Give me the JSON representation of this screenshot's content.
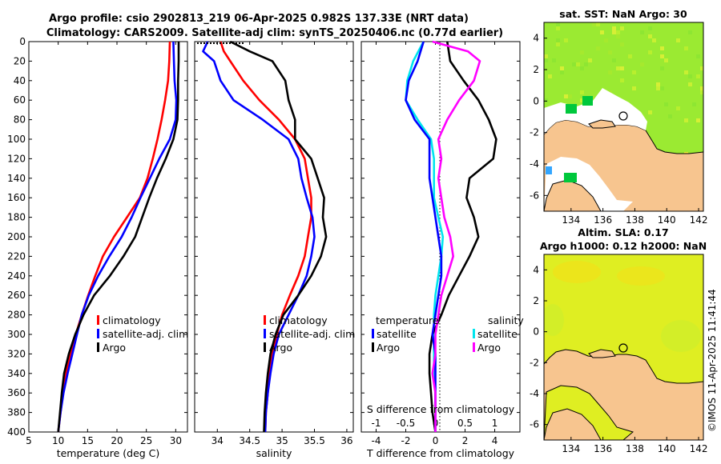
{
  "titles": {
    "main_line1": "Argo profile: csio 2902813_219 06-Apr-2025 0.982S 137.33E (NRT data)",
    "main_line2": "Climatology: CARS2009. Satellite-adj clim: synTS_20250406.nc (0.77d earlier)",
    "map_top": "sat. SST: NaN Argo: 30",
    "map_bottom_line1": "Altim. SLA: 0.17",
    "map_bottom_line2": "Argo h1000: 0.12 h2000: NaN"
  },
  "stamp": "©IMOS 11-Apr-2025 11:41:44",
  "colors": {
    "climatology": "#ff0000",
    "satellite": "#0000ff",
    "argo": "#000000",
    "temp_diff": "#00e5ee",
    "sal_diff": "#ff00ff",
    "land": "#f7c58f",
    "sst_green": "#9bea32",
    "sla_yellow": "#dfee22"
  },
  "legends": {
    "temperature": [
      "climatology",
      "satellite-adj. clim",
      "Argo"
    ],
    "salinity": [
      "climatology",
      "satellite-adj. clim",
      "Argo"
    ],
    "diff_left_header": "temperature",
    "diff_right_header": "salinity",
    "diff_left": [
      "satellite",
      "Argo"
    ],
    "diff_right": [
      "satellite",
      "Argo"
    ]
  },
  "chart_data": [
    {
      "type": "line",
      "title": "",
      "xlabel": "temperature (deg C)",
      "ylabel": "",
      "xlim": [
        5,
        32
      ],
      "ylim": [
        400,
        0
      ],
      "xticks": [
        5,
        10,
        15,
        20,
        25,
        30
      ],
      "yticks": [
        0,
        20,
        40,
        60,
        80,
        100,
        120,
        140,
        160,
        180,
        200,
        220,
        240,
        260,
        280,
        300,
        320,
        340,
        360,
        380,
        400
      ],
      "series": [
        {
          "name": "climatology",
          "depth": [
            0,
            20,
            40,
            60,
            80,
            100,
            120,
            140,
            160,
            180,
            200,
            220,
            240,
            260,
            280,
            300,
            320,
            340,
            360,
            380,
            400
          ],
          "values": [
            29.0,
            28.9,
            28.7,
            28.2,
            27.6,
            26.9,
            26.1,
            25.2,
            23.9,
            21.7,
            19.5,
            17.6,
            16.3,
            15.1,
            14.0,
            13.0,
            12.1,
            11.3,
            10.8,
            10.4,
            10.0
          ]
        },
        {
          "name": "satellite-adj. clim",
          "depth": [
            0,
            20,
            40,
            60,
            80,
            100,
            120,
            140,
            160,
            180,
            200,
            220,
            240,
            260,
            280,
            300,
            320,
            340,
            360,
            380,
            400
          ],
          "values": [
            29.6,
            29.7,
            29.8,
            30.1,
            30.0,
            29.0,
            27.2,
            25.6,
            24.0,
            22.5,
            20.8,
            18.7,
            16.8,
            15.2,
            14.0,
            13.2,
            12.4,
            11.6,
            10.9,
            10.4,
            10.0
          ]
        },
        {
          "name": "Argo",
          "depth": [
            0,
            20,
            40,
            60,
            80,
            100,
            120,
            140,
            160,
            180,
            200,
            220,
            240,
            260,
            280,
            300,
            320,
            340,
            360,
            380,
            400
          ],
          "values": [
            30.5,
            30.5,
            30.4,
            30.4,
            30.3,
            29.6,
            28.3,
            26.8,
            25.5,
            24.3,
            23.1,
            21.1,
            18.8,
            16.1,
            14.3,
            12.9,
            11.8,
            11.0,
            10.6,
            10.3,
            10.0
          ]
        }
      ]
    },
    {
      "type": "line",
      "title": "",
      "xlabel": "salinity",
      "ylabel": "",
      "xlim": [
        33.65,
        36.1
      ],
      "ylim": [
        400,
        0
      ],
      "xticks": [
        34,
        34.5,
        35,
        35.5,
        36
      ],
      "series": [
        {
          "name": "climatology",
          "depth": [
            0,
            10,
            20,
            40,
            60,
            80,
            100,
            120,
            140,
            160,
            180,
            200,
            220,
            240,
            260,
            280,
            300,
            320,
            340,
            360,
            380,
            400
          ],
          "values": [
            34.05,
            34.1,
            34.2,
            34.4,
            34.65,
            34.95,
            35.2,
            35.35,
            35.4,
            35.45,
            35.45,
            35.4,
            35.35,
            35.25,
            35.12,
            35.0,
            34.92,
            34.85,
            34.8,
            34.78,
            34.75,
            34.74
          ]
        },
        {
          "name": "satellite-adj. clim",
          "depth": [
            0,
            10,
            20,
            40,
            60,
            80,
            100,
            120,
            140,
            160,
            180,
            200,
            220,
            240,
            260,
            280,
            300,
            320,
            340,
            360,
            380,
            400
          ],
          "values": [
            33.85,
            33.78,
            33.95,
            34.05,
            34.25,
            34.7,
            35.1,
            35.25,
            35.3,
            35.38,
            35.47,
            35.5,
            35.45,
            35.38,
            35.25,
            35.1,
            34.95,
            34.87,
            34.82,
            34.78,
            34.75,
            34.74
          ]
        },
        {
          "name": "Argo",
          "depth": [
            0,
            10,
            20,
            40,
            60,
            80,
            100,
            120,
            140,
            160,
            180,
            200,
            220,
            240,
            260,
            280,
            300,
            320,
            340,
            360,
            380,
            400
          ],
          "values": [
            34.2,
            34.5,
            34.85,
            35.05,
            35.1,
            35.2,
            35.2,
            35.45,
            35.55,
            35.65,
            35.63,
            35.68,
            35.6,
            35.45,
            35.25,
            35.02,
            34.9,
            34.82,
            34.78,
            34.75,
            34.73,
            34.72
          ]
        }
      ]
    },
    {
      "type": "line",
      "title": "",
      "xlabel": "T difference from climatology",
      "x2label": "S difference from climatology",
      "xlim": [
        -5,
        5.7
      ],
      "x2lim": [
        -1.25,
        1.425
      ],
      "ylim": [
        400,
        0
      ],
      "xticks": [
        -4,
        -2,
        0,
        2,
        4
      ],
      "x2ticks": [
        -1,
        -0.5,
        0,
        0.5,
        1
      ],
      "series": [
        {
          "name": "temperature satellite",
          "axis": "T",
          "depth": [
            0,
            20,
            40,
            60,
            80,
            100,
            120,
            140,
            160,
            180,
            200,
            220,
            240,
            260,
            280,
            300,
            320,
            340,
            360,
            380,
            400
          ],
          "values": [
            -0.8,
            -1.5,
            -1.9,
            -2.0,
            -1.2,
            -0.3,
            -0.1,
            -0.1,
            -0.1,
            0.2,
            0.5,
            0.4,
            0.2,
            0.0,
            -0.1,
            -0.1,
            -0.1,
            -0.1,
            0.0,
            0.0,
            0.0
          ]
        },
        {
          "name": "temperature Argo",
          "axis": "T",
          "depth": [
            0,
            20,
            40,
            60,
            80,
            100,
            120,
            140,
            160,
            180,
            200,
            220,
            240,
            260,
            280,
            300,
            320,
            340,
            360,
            380,
            400
          ],
          "values": [
            0.8,
            1.0,
            1.9,
            2.9,
            3.6,
            4.1,
            3.9,
            2.3,
            2.1,
            2.6,
            2.9,
            2.3,
            1.6,
            0.9,
            0.4,
            -0.2,
            -0.4,
            -0.4,
            -0.3,
            -0.2,
            0.0
          ]
        },
        {
          "name": "salinity satellite",
          "axis": "S",
          "depth": [
            0,
            20,
            40,
            60,
            80,
            100,
            120,
            140,
            160,
            180,
            200,
            220,
            240,
            260,
            280,
            300,
            320,
            340,
            360,
            380,
            400
          ],
          "values": [
            -0.2,
            -0.3,
            -0.45,
            -0.5,
            -0.35,
            -0.1,
            -0.1,
            -0.1,
            -0.05,
            0.0,
            0.05,
            0.1,
            0.1,
            0.05,
            0.0,
            -0.05,
            0.0,
            0.0,
            0.0,
            0.0,
            0.0
          ]
        },
        {
          "name": "salinity Argo",
          "axis": "S",
          "depth": [
            0,
            10,
            20,
            40,
            60,
            80,
            100,
            120,
            140,
            160,
            180,
            200,
            220,
            240,
            260,
            280,
            300,
            320,
            340,
            360,
            380,
            400
          ],
          "values": [
            -0.05,
            0.55,
            0.75,
            0.65,
            0.4,
            0.2,
            0.05,
            0.1,
            0.05,
            0.1,
            0.15,
            0.25,
            0.3,
            0.2,
            0.1,
            0.05,
            0.0,
            0.0,
            -0.05,
            0.0,
            0.0,
            0.0
          ]
        }
      ]
    },
    {
      "type": "heatmap",
      "title": "sat. SST: NaN Argo: 30",
      "xlim": [
        132.3,
        142.3
      ],
      "ylim": [
        -7.0,
        5.0
      ],
      "xticks": [
        134,
        136,
        138,
        140,
        142
      ],
      "yticks": [
        4,
        2,
        0,
        -2,
        -4,
        -6
      ],
      "argo_position": [
        137.33,
        -0.98
      ]
    },
    {
      "type": "heatmap",
      "title": "Altim. SLA: 0.17 / Argo h1000: 0.12 h2000: NaN",
      "xlim": [
        132.3,
        142.3
      ],
      "ylim": [
        -7.0,
        5.0
      ],
      "xticks": [
        134,
        136,
        138,
        140,
        142
      ],
      "yticks": [
        4,
        2,
        0,
        -2,
        -4,
        -6
      ],
      "argo_position": [
        137.33,
        -0.98
      ]
    }
  ]
}
